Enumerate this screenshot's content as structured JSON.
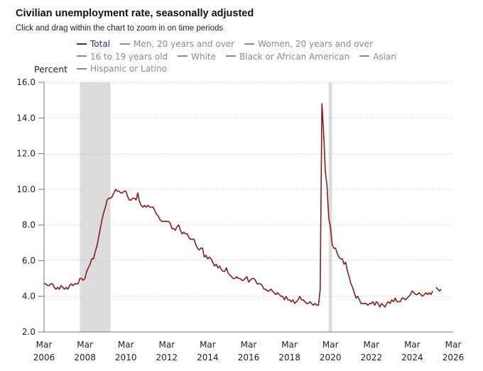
{
  "header": {
    "title": "Civilian unemployment rate, seasonally adjusted",
    "subtitle": "Click and drag within the chart to zoom in on time periods"
  },
  "legend": [
    {
      "label": "Total",
      "color": "#8b1a1a",
      "active": true
    },
    {
      "label": "Men, 20 years and over",
      "color": "#8a8a8a",
      "active": false
    },
    {
      "label": "Women, 20 years and over",
      "color": "#8a8a8a",
      "active": false
    },
    {
      "label": "16 to 19 years old",
      "color": "#8a8a8a",
      "active": false
    },
    {
      "label": "White",
      "color": "#8a8a8a",
      "active": false
    },
    {
      "label": "Black or African American",
      "color": "#8a8a8a",
      "active": false
    },
    {
      "label": "Asian",
      "color": "#8a8a8a",
      "active": false
    },
    {
      "label": "Hispanic or Latino",
      "color": "#8a8a8a",
      "active": false
    }
  ],
  "colors": {
    "line": "#8b1a1a",
    "recession": "#dcdcdc",
    "grid": "#bbbbbb",
    "axis": "#777777"
  },
  "chart_data": {
    "type": "line",
    "title": "Civilian unemployment rate, seasonally adjusted",
    "xlabel": "",
    "ylabel": "Percent",
    "ylim": [
      2.0,
      16.0
    ],
    "yticks": [
      "2.0",
      "4.0",
      "6.0",
      "8.0",
      "10.0",
      "12.0",
      "14.0",
      "16.0"
    ],
    "ytick_values": [
      2,
      4,
      6,
      8,
      10,
      12,
      14,
      16
    ],
    "xlim": [
      "2006-03",
      "2026-03"
    ],
    "xticks": [
      {
        "month": "Mar",
        "year": "2006",
        "value": "2006-03"
      },
      {
        "month": "Mar",
        "year": "2008",
        "value": "2008-03"
      },
      {
        "month": "Mar",
        "year": "2010",
        "value": "2010-03"
      },
      {
        "month": "Mar",
        "year": "2012",
        "value": "2012-03"
      },
      {
        "month": "Mar",
        "year": "2014",
        "value": "2014-03"
      },
      {
        "month": "Mar",
        "year": "2016",
        "value": "2016-03"
      },
      {
        "month": "Mar",
        "year": "2018",
        "value": "2018-03"
      },
      {
        "month": "Mar",
        "year": "2020",
        "value": "2020-03"
      },
      {
        "month": "Mar",
        "year": "2022",
        "value": "2022-03"
      },
      {
        "month": "Mar",
        "year": "2024",
        "value": "2024-03"
      },
      {
        "month": "Mar",
        "year": "2026",
        "value": "2026-03"
      }
    ],
    "grid": "horizontal-dotted",
    "legend_position": "top",
    "recessions": [
      {
        "start": "2007-12",
        "end": "2009-06"
      },
      {
        "start": "2020-02",
        "end": "2020-04"
      }
    ],
    "series": [
      {
        "name": "Total",
        "start": "2006-03",
        "frequency": "monthly",
        "values": [
          4.7,
          4.7,
          4.6,
          4.6,
          4.7,
          4.7,
          4.5,
          4.4,
          4.5,
          4.4,
          4.6,
          4.5,
          4.4,
          4.5,
          4.4,
          4.6,
          4.7,
          4.6,
          4.7,
          4.7,
          4.7,
          5.0,
          5.0,
          4.9,
          5.0,
          5.4,
          5.6,
          5.8,
          6.1,
          6.1,
          6.5,
          6.8,
          7.3,
          7.8,
          8.3,
          8.7,
          9.0,
          9.4,
          9.5,
          9.5,
          9.6,
          9.8,
          10.0,
          9.9,
          9.9,
          9.8,
          9.8,
          9.9,
          9.9,
          9.6,
          9.4,
          9.4,
          9.5,
          9.5,
          9.4,
          9.8,
          9.3,
          9.1,
          9.0,
          9.1,
          9.0,
          9.1,
          9.0,
          9.0,
          9.0,
          8.8,
          8.6,
          8.5,
          8.3,
          8.2,
          8.2,
          8.2,
          8.2,
          8.2,
          8.1,
          7.8,
          7.8,
          7.7,
          7.9,
          8.0,
          7.7,
          7.5,
          7.6,
          7.5,
          7.5,
          7.3,
          7.2,
          7.2,
          7.2,
          6.9,
          6.7,
          6.6,
          6.7,
          6.7,
          6.2,
          6.3,
          6.1,
          6.2,
          6.1,
          5.9,
          5.7,
          5.8,
          5.6,
          5.7,
          5.5,
          5.4,
          5.4,
          5.6,
          5.3,
          5.2,
          5.1,
          5.0,
          5.0,
          5.1,
          5.0,
          5.0,
          4.9,
          4.9,
          5.0,
          5.1,
          4.8,
          4.9,
          5.0,
          5.0,
          4.9,
          4.7,
          4.7,
          4.7,
          4.6,
          4.4,
          4.4,
          4.3,
          4.3,
          4.4,
          4.3,
          4.2,
          4.1,
          4.2,
          4.1,
          4.0,
          4.0,
          3.8,
          4.0,
          3.8,
          3.8,
          3.7,
          3.8,
          3.6,
          3.7,
          3.8,
          4.0,
          3.8,
          3.8,
          3.7,
          3.6,
          3.6,
          3.7,
          3.6,
          3.5,
          3.6,
          3.5,
          3.5,
          4.4,
          14.8,
          13.2,
          11.0,
          10.2,
          8.4,
          7.9,
          6.9,
          6.7,
          6.7,
          6.4,
          6.2,
          6.1,
          6.1,
          5.8,
          5.9,
          5.4,
          5.1,
          4.7,
          4.5,
          4.2,
          3.9,
          4.0,
          3.8,
          3.6,
          3.6,
          3.6,
          3.6,
          3.5,
          3.6,
          3.6,
          3.7,
          3.5,
          3.7,
          3.6,
          3.4,
          3.6,
          3.5,
          3.4,
          3.6,
          3.7,
          3.6,
          3.8,
          3.7,
          3.9,
          3.7,
          3.7,
          3.7,
          3.9,
          3.9,
          3.8,
          3.9,
          4.0,
          4.1,
          4.3,
          4.2,
          4.1,
          4.1,
          4.2,
          4.1,
          4.0,
          4.1,
          4.2,
          4.1,
          4.2,
          4.1,
          4.3,
          null,
          4.5,
          4.4,
          4.3,
          4.4
        ]
      }
    ]
  }
}
